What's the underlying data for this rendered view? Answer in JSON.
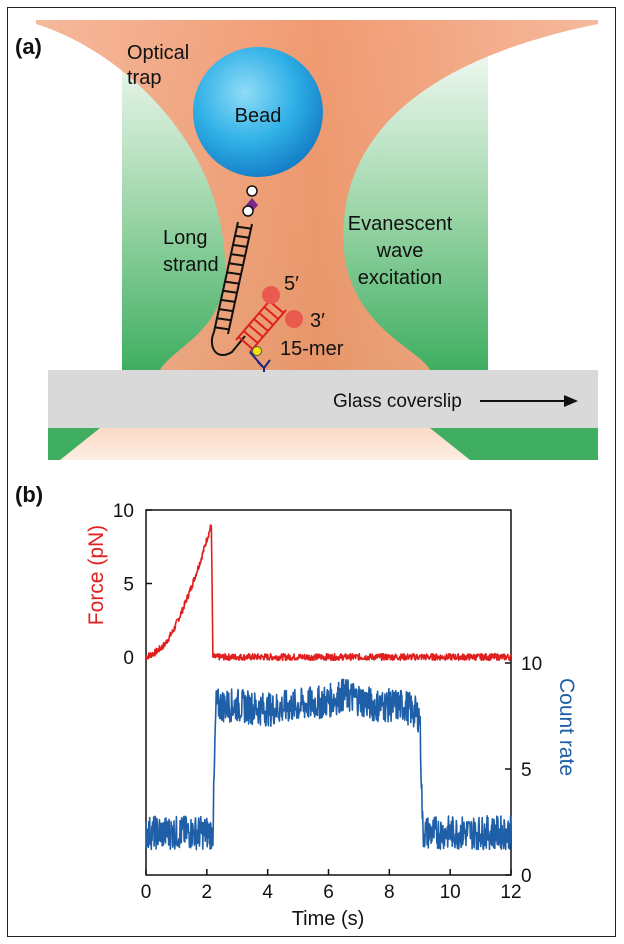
{
  "panel_a": {
    "label": "(a)",
    "optical_trap": [
      "Optical",
      "trap"
    ],
    "bead": "Bead",
    "long_strand": [
      "Long",
      "strand"
    ],
    "evanescent": [
      "Evanescent",
      "wave",
      "excitation"
    ],
    "five_prime": "5′",
    "three_prime": "3′",
    "fifteen_mer": "15-mer",
    "coverslip": "Glass coverslip"
  },
  "panel_b": {
    "label": "(b)"
  },
  "chart_data": {
    "type": "line",
    "xlabel": "Time (s)",
    "xlim": [
      0,
      12
    ],
    "xticks": [
      0,
      2,
      4,
      6,
      8,
      10,
      12
    ],
    "force_axis": {
      "label": "Force (pN)",
      "ticks": [
        0,
        5,
        10
      ],
      "range": [
        0,
        10
      ],
      "color": "#e0201f"
    },
    "count_axis": {
      "label": "Count rate",
      "ticks": [
        0,
        5,
        10
      ],
      "range": [
        0,
        10
      ],
      "color": "#1f5fa8"
    },
    "series": [
      {
        "axis": "force",
        "color": "#e0201f",
        "x": [
          0,
          0.3,
          0.6,
          0.9,
          1.2,
          1.5,
          1.8,
          2.0,
          2.15,
          2.2,
          2.4,
          3,
          4,
          5,
          6,
          7,
          8,
          9,
          10,
          11,
          12
        ],
        "y": [
          0,
          0.3,
          0.8,
          1.8,
          3.2,
          4.8,
          6.6,
          8.0,
          9.0,
          0,
          0,
          0,
          0,
          0,
          0,
          0,
          0,
          0,
          0,
          0,
          0
        ]
      },
      {
        "axis": "count",
        "color": "#1f5fa8",
        "x": [
          0,
          1,
          2,
          2.2,
          2.3,
          3,
          4,
          5,
          6,
          6.5,
          7,
          7.5,
          8,
          8.5,
          9,
          9.1,
          10,
          11,
          12
        ],
        "y": [
          2,
          2,
          2,
          2,
          8,
          8,
          7.8,
          8,
          8.2,
          8.5,
          8.3,
          8,
          8,
          8,
          7.5,
          2,
          2,
          2,
          2
        ]
      }
    ]
  }
}
